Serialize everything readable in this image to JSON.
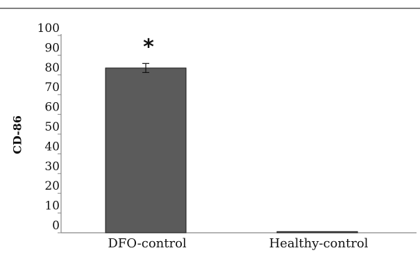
{
  "chart_data": {
    "type": "bar",
    "categories": [
      "DFO-control",
      "Healthy-control"
    ],
    "values": [
      83.5,
      0.6
    ],
    "error": [
      2.3,
      0
    ],
    "annotations": [
      "*",
      ""
    ],
    "xlabel": "",
    "ylabel": "CD-86",
    "ylim": [
      0,
      100
    ],
    "yticks": [
      0,
      10,
      20,
      30,
      40,
      50,
      60,
      70,
      80,
      90,
      100
    ],
    "grid": false,
    "bar_color": "#5b5b5b",
    "bar_edge_color": "#1a1a1a",
    "axis_color": "#888888",
    "header_rule_color": "#333333"
  }
}
